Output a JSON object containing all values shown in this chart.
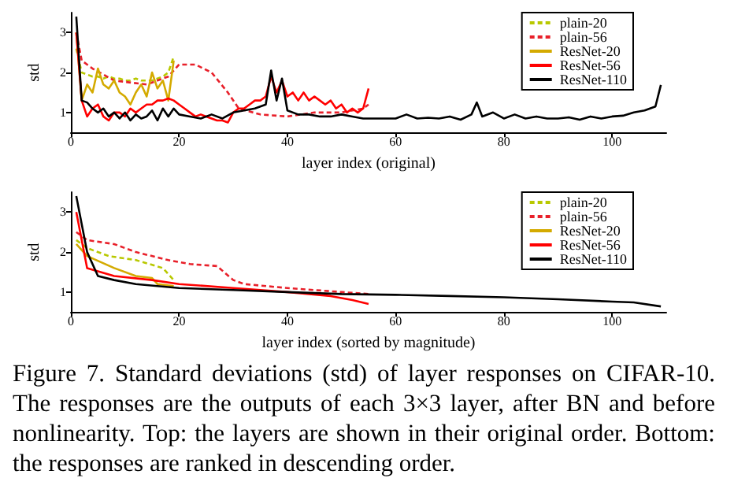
{
  "chart_data": [
    {
      "type": "line",
      "xlabel": "layer index (original)",
      "ylabel": "std",
      "xlim": [
        0,
        110
      ],
      "xticks": [
        0,
        20,
        40,
        60,
        80,
        100
      ],
      "ylim": [
        0.5,
        3.5
      ],
      "yticks": [
        1,
        2,
        3
      ],
      "grid": false,
      "legend": "top right",
      "marker": "none",
      "series": [
        {
          "name": "plain-20",
          "color": "#b8c800",
          "line_style": "dashed",
          "x": [
            1,
            2,
            3,
            4,
            5,
            6,
            7,
            8,
            9,
            10,
            11,
            12,
            13,
            14,
            15,
            16,
            17,
            18,
            19
          ],
          "values": [
            2.6,
            2.0,
            1.95,
            1.9,
            1.9,
            1.85,
            1.9,
            1.85,
            1.85,
            1.8,
            1.8,
            1.85,
            1.8,
            1.8,
            1.8,
            1.85,
            1.9,
            2.0,
            2.4
          ]
        },
        {
          "name": "plain-56",
          "color": "#e8202a",
          "line_style": "dashed",
          "x": [
            1,
            2,
            4,
            8,
            14,
            18,
            20,
            23,
            26,
            29,
            31,
            35,
            40,
            45,
            50,
            54,
            55
          ],
          "values": [
            3.0,
            2.3,
            2.1,
            1.8,
            1.7,
            1.9,
            2.2,
            2.2,
            2.0,
            1.5,
            1.1,
            0.95,
            0.9,
            1.0,
            1.0,
            1.1,
            1.2
          ]
        },
        {
          "name": "ResNet-20",
          "color": "#d4aa00",
          "line_style": "solid",
          "x": [
            1,
            2,
            3,
            4,
            5,
            6,
            7,
            8,
            9,
            10,
            11,
            12,
            13,
            14,
            15,
            16,
            17,
            18,
            19
          ],
          "values": [
            3.0,
            1.3,
            1.7,
            1.5,
            2.1,
            1.7,
            1.6,
            1.8,
            1.5,
            1.4,
            1.2,
            1.5,
            1.7,
            1.4,
            2.0,
            1.6,
            1.8,
            1.3,
            2.3
          ]
        },
        {
          "name": "ResNet-56",
          "color": "#ff0000",
          "line_style": "solid",
          "x": [
            1,
            2,
            3,
            4,
            5,
            6,
            7,
            8,
            9,
            10,
            11,
            12,
            13,
            14,
            15,
            16,
            17,
            18,
            19,
            20,
            21,
            22,
            23,
            24,
            25,
            26,
            27,
            28,
            29,
            30,
            31,
            32,
            33,
            34,
            35,
            36,
            37,
            38,
            39,
            40,
            41,
            42,
            43,
            44,
            45,
            46,
            47,
            48,
            49,
            50,
            51,
            52,
            53,
            54,
            55
          ],
          "values": [
            3.0,
            1.3,
            0.9,
            1.1,
            1.2,
            0.9,
            0.8,
            1.0,
            1.0,
            0.9,
            1.1,
            1.0,
            1.1,
            1.2,
            1.2,
            1.3,
            1.3,
            1.35,
            1.3,
            1.2,
            1.1,
            1.0,
            0.9,
            0.95,
            0.9,
            0.85,
            0.8,
            0.8,
            0.75,
            1.0,
            1.1,
            1.1,
            1.2,
            1.3,
            1.3,
            1.4,
            1.9,
            1.5,
            1.8,
            1.4,
            1.5,
            1.3,
            1.5,
            1.3,
            1.4,
            1.3,
            1.2,
            1.3,
            1.1,
            1.2,
            1.0,
            1.1,
            1.0,
            1.1,
            1.6
          ]
        },
        {
          "name": "ResNet-110",
          "color": "#000000",
          "line_style": "solid",
          "x": [
            1,
            2,
            3,
            4,
            5,
            6,
            7,
            8,
            9,
            10,
            11,
            12,
            13,
            14,
            15,
            16,
            17,
            18,
            19,
            20,
            22,
            24,
            26,
            28,
            30,
            32,
            34,
            36,
            37,
            38,
            39,
            40,
            42,
            44,
            46,
            48,
            50,
            52,
            54,
            56,
            58,
            60,
            62,
            64,
            66,
            68,
            70,
            72,
            74,
            75,
            76,
            78,
            80,
            82,
            84,
            86,
            88,
            90,
            92,
            94,
            96,
            98,
            100,
            102,
            104,
            106,
            108,
            109
          ],
          "values": [
            3.4,
            1.3,
            1.25,
            1.1,
            1.0,
            1.1,
            0.9,
            1.0,
            0.85,
            1.0,
            0.8,
            0.95,
            0.85,
            0.9,
            1.05,
            0.8,
            1.1,
            0.9,
            1.1,
            0.95,
            0.9,
            0.85,
            0.95,
            0.85,
            1.0,
            1.05,
            1.1,
            1.2,
            2.05,
            1.3,
            1.85,
            1.05,
            0.95,
            0.95,
            0.9,
            0.9,
            0.95,
            0.9,
            0.85,
            0.85,
            0.85,
            0.85,
            0.95,
            0.85,
            0.87,
            0.85,
            0.9,
            0.82,
            0.95,
            1.25,
            0.9,
            1.0,
            0.85,
            0.95,
            0.85,
            0.9,
            0.85,
            0.85,
            0.88,
            0.82,
            0.9,
            0.85,
            0.9,
            0.92,
            1.0,
            1.05,
            1.15,
            1.69
          ]
        }
      ]
    },
    {
      "type": "line",
      "xlabel": "layer index (sorted by magnitude)",
      "ylabel": "std",
      "xlim": [
        0,
        110
      ],
      "xticks": [
        0,
        20,
        40,
        60,
        80,
        100
      ],
      "ylim": [
        0.5,
        3.5
      ],
      "yticks": [
        1,
        2,
        3
      ],
      "grid": false,
      "legend": "top right",
      "marker": "none",
      "annotations": [
        "Figure 7. Standard deviations (std) of layer responses on CIFAR-10. The responses are the outputs of each 3×3 layer, after BN and before nonlinearity. Top: the layers are shown in their original order. Bottom: the responses are ranked in descending order."
      ],
      "series": [
        {
          "name": "plain-20",
          "color": "#b8c800",
          "line_style": "dashed",
          "x": [
            1,
            3,
            7,
            12,
            17,
            19
          ],
          "values": [
            2.3,
            2.1,
            1.9,
            1.8,
            1.6,
            1.3
          ]
        },
        {
          "name": "plain-56",
          "color": "#e8202a",
          "line_style": "dashed",
          "x": [
            1,
            3,
            8,
            12,
            18,
            22,
            27,
            30,
            32,
            40,
            50,
            55
          ],
          "values": [
            2.5,
            2.3,
            2.2,
            2.0,
            1.8,
            1.7,
            1.65,
            1.3,
            1.2,
            1.1,
            1.0,
            0.95
          ]
        },
        {
          "name": "ResNet-20",
          "color": "#d4aa00",
          "line_style": "solid",
          "x": [
            1,
            3,
            8,
            12,
            15,
            16,
            19
          ],
          "values": [
            2.2,
            1.9,
            1.6,
            1.4,
            1.35,
            1.2,
            1.15
          ]
        },
        {
          "name": "ResNet-56",
          "color": "#ff0000",
          "line_style": "solid",
          "x": [
            1,
            3,
            8,
            15,
            20,
            30,
            40,
            48,
            52,
            55
          ],
          "values": [
            3.0,
            1.6,
            1.4,
            1.3,
            1.2,
            1.1,
            1.0,
            0.9,
            0.8,
            0.7
          ]
        },
        {
          "name": "ResNet-110",
          "color": "#000000",
          "line_style": "solid",
          "x": [
            1,
            3,
            5,
            8,
            12,
            20,
            30,
            40,
            50,
            60,
            70,
            80,
            90,
            100,
            104,
            109
          ],
          "values": [
            3.4,
            2.0,
            1.4,
            1.3,
            1.2,
            1.1,
            1.05,
            1.0,
            0.95,
            0.93,
            0.9,
            0.87,
            0.82,
            0.76,
            0.74,
            0.64
          ]
        }
      ]
    }
  ]
}
